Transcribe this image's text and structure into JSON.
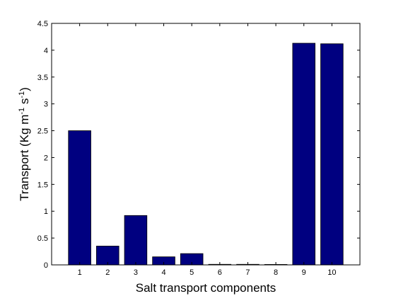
{
  "chart_data": {
    "type": "bar",
    "categories": [
      "1",
      "2",
      "3",
      "4",
      "5",
      "6",
      "7",
      "8",
      "9",
      "10"
    ],
    "values": [
      2.5,
      0.35,
      0.92,
      0.15,
      0.21,
      0.01,
      0.01,
      0.005,
      4.13,
      4.12
    ],
    "title": "",
    "xlabel": "Salt transport components",
    "ylabel": {
      "main": "Transport (Kg m",
      "exp1": "-1",
      "mid": " s",
      "exp2": "-1",
      "end": ")"
    },
    "xlim": [
      0,
      11
    ],
    "ylim": [
      0,
      4.5
    ],
    "yticks": [
      "0",
      "0.5",
      "1",
      "1.5",
      "2",
      "2.5",
      "3",
      "3.5",
      "4",
      "4.5"
    ],
    "bar_color": "#000080",
    "grid": false,
    "legend": "none"
  }
}
